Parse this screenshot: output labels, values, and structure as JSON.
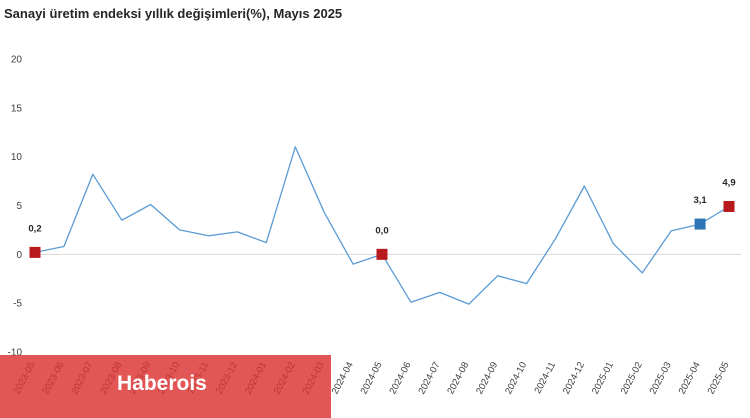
{
  "title": "Sanayi üretim endeksi yıllık değişimleri(%), Mayıs 2025",
  "watermark": "Haberois",
  "colors": {
    "line": "#5b9bd5",
    "highlight_red": "#b8191c",
    "highlight_blue": "#2e75b6",
    "zero_line": "#d9d9d9"
  },
  "chart_data": {
    "type": "line",
    "title": "Sanayi üretim endeksi yıllık değişimleri(%), Mayıs 2025",
    "xlabel": "",
    "ylabel": "",
    "ylim": [
      -10,
      20
    ],
    "yticks": [
      20,
      15,
      10,
      5,
      0,
      -5,
      -10
    ],
    "grid": false,
    "x": [
      "2023-05",
      "2023-06",
      "2023-07",
      "2023-08",
      "2023-09",
      "2023-10",
      "2023-11",
      "2023-12",
      "2024-01",
      "2024-02",
      "2024-03",
      "2024-04",
      "2024-05",
      "2024-06",
      "2024-07",
      "2024-08",
      "2024-09",
      "2024-10",
      "2024-11",
      "2024-12",
      "2025-01",
      "2025-02",
      "2025-03",
      "2025-04",
      "2025-05"
    ],
    "series": [
      {
        "values": [
          0.2,
          0.8,
          8.2,
          3.5,
          5.1,
          2.5,
          1.9,
          2.3,
          1.2,
          11.0,
          4.3,
          -1.0,
          0.0,
          -4.9,
          -3.9,
          -5.1,
          -2.2,
          -3.0,
          1.6,
          7.0,
          1.1,
          -1.9,
          2.4,
          3.1,
          4.9
        ]
      }
    ],
    "highlighted_points": [
      {
        "x": "2023-05",
        "value": 0.2,
        "label": "0,2",
        "color": "red"
      },
      {
        "x": "2024-05",
        "value": 0.0,
        "label": "0,0",
        "color": "red"
      },
      {
        "x": "2025-04",
        "value": 3.1,
        "label": "3,1",
        "color": "blue"
      },
      {
        "x": "2025-05",
        "value": 4.9,
        "label": "4,9",
        "color": "red"
      }
    ]
  }
}
